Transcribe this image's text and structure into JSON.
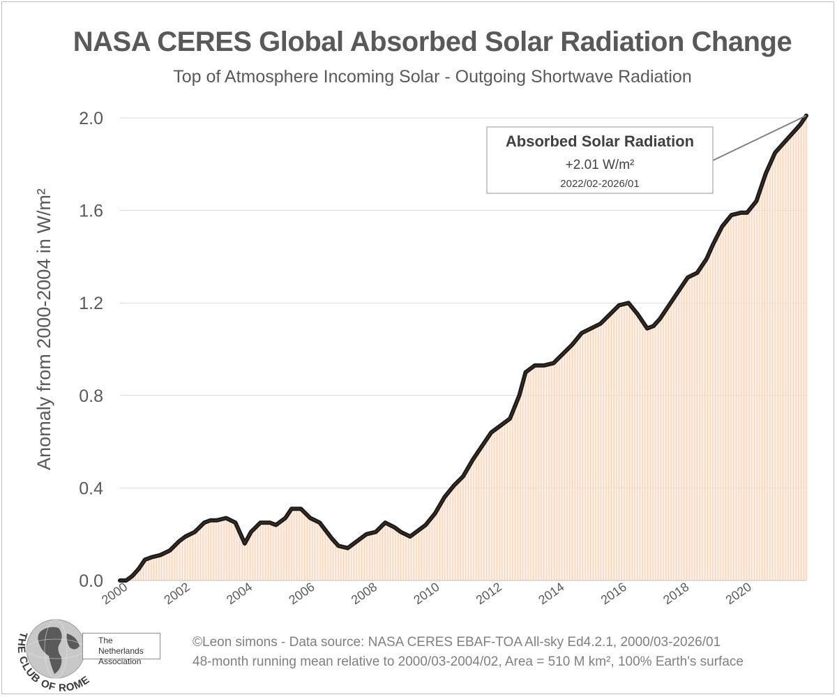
{
  "chart_data": {
    "type": "area",
    "title": "NASA CERES Global Absorbed Solar Radiation Change",
    "subtitle": "Top of Atmosphere Incoming Solar - Outgoing Shortwave Radiation",
    "ylabel": "Anomaly from 2000-2004 in W/m²",
    "xlabel": "",
    "ylim": [
      0,
      2.0
    ],
    "xlim": [
      2000,
      2022
    ],
    "y_ticks": [
      "0.0",
      "0.4",
      "0.8",
      "1.2",
      "1.6",
      "2.0"
    ],
    "x_ticks": [
      "2000",
      "2002",
      "2004",
      "2006",
      "2008",
      "2010",
      "2012",
      "2014",
      "2016",
      "2018",
      "2020"
    ],
    "grid": true,
    "series": [
      {
        "name": "Absorbed Solar Radiation (48-month running mean)",
        "color": "#1a1a1a",
        "fill_color": "#f4b183",
        "x": [
          2000.0,
          2000.2,
          2000.4,
          2000.6,
          2000.8,
          2001.0,
          2001.3,
          2001.6,
          2001.9,
          2002.1,
          2002.4,
          2002.7,
          2002.9,
          2003.1,
          2003.4,
          2003.7,
          2004.0,
          2004.2,
          2004.5,
          2004.8,
          2005.0,
          2005.3,
          2005.5,
          2005.8,
          2006.1,
          2006.4,
          2006.8,
          2007.0,
          2007.3,
          2007.6,
          2007.9,
          2008.2,
          2008.5,
          2008.8,
          2009.0,
          2009.3,
          2009.5,
          2009.8,
          2010.1,
          2010.4,
          2010.7,
          2011.0,
          2011.3,
          2011.6,
          2011.9,
          2012.2,
          2012.5,
          2012.8,
          2013.0,
          2013.3,
          2013.6,
          2013.9,
          2014.2,
          2014.5,
          2014.8,
          2015.1,
          2015.4,
          2015.7,
          2016.0,
          2016.3,
          2016.6,
          2016.9,
          2017.1,
          2017.3,
          2017.6,
          2017.9,
          2018.2,
          2018.5,
          2018.8,
          2019.0,
          2019.3,
          2019.6,
          2019.9,
          2020.1,
          2020.4,
          2020.7,
          2021.0,
          2021.2,
          2021.4,
          2021.6,
          2021.8,
          2022.0
        ],
        "values": [
          0.0,
          0.0,
          0.02,
          0.05,
          0.09,
          0.1,
          0.11,
          0.13,
          0.17,
          0.19,
          0.21,
          0.25,
          0.26,
          0.26,
          0.27,
          0.25,
          0.16,
          0.21,
          0.25,
          0.25,
          0.24,
          0.27,
          0.31,
          0.31,
          0.27,
          0.25,
          0.18,
          0.15,
          0.14,
          0.17,
          0.2,
          0.21,
          0.25,
          0.23,
          0.21,
          0.19,
          0.21,
          0.24,
          0.29,
          0.36,
          0.41,
          0.45,
          0.52,
          0.58,
          0.64,
          0.67,
          0.7,
          0.8,
          0.9,
          0.93,
          0.93,
          0.94,
          0.98,
          1.02,
          1.07,
          1.09,
          1.11,
          1.15,
          1.19,
          1.2,
          1.15,
          1.09,
          1.1,
          1.13,
          1.19,
          1.25,
          1.31,
          1.33,
          1.39,
          1.45,
          1.53,
          1.58,
          1.59,
          1.59,
          1.64,
          1.76,
          1.85,
          1.88,
          1.91,
          1.94,
          1.97,
          2.01
        ]
      }
    ],
    "annotation": {
      "title": "Absorbed Solar Radiation",
      "value": "+2.01 W/m²",
      "period": "2022/02-2026/01"
    }
  },
  "credits": {
    "line1": "©Leon simons - Data source: NASA CERES EBAF-TOA All-sky Ed4.2.1, 2000/03-2026/01",
    "line2": "48-month running mean relative to 2000/03-2004/02, Area = 510 M km², 100% Earth's surface"
  },
  "logo": {
    "association_line1": "The Netherlands",
    "association_line2": "Association",
    "brand": "THE CLUB OF ROME"
  }
}
